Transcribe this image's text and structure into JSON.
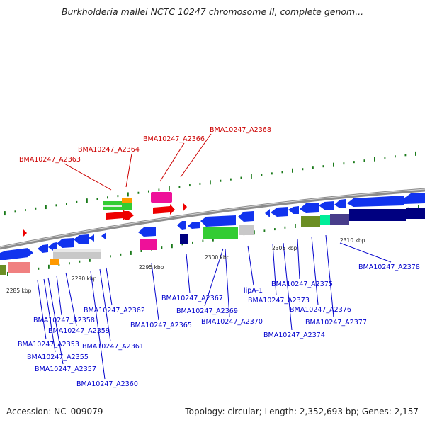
{
  "title": "Burkholderia mallei NCTC 10247 chromosome II, complete genom...",
  "colors": {
    "forward_label": "#cc0000",
    "reverse_label": "#0000cc",
    "ruler_dot": "#1a7a1a",
    "backbone": "#8c8c8c",
    "marker": "#ee0000"
  },
  "scale_ticks": [
    "2285 kbp",
    "2290 kbp",
    "2295 kbp",
    "2300 kbp",
    "2305 kbp",
    "2310 kbp"
  ],
  "gene_labels": [
    {
      "name": "BMA10247_A2368",
      "strand": "forward"
    },
    {
      "name": "BMA10247_A2366",
      "strand": "forward"
    },
    {
      "name": "BMA10247_A2364",
      "strand": "forward"
    },
    {
      "name": "BMA10247_A2363",
      "strand": "forward"
    },
    {
      "name": "BMA10247_A2378",
      "strand": "reverse"
    },
    {
      "name": "lipA-1",
      "strand": "reverse"
    },
    {
      "name": "BMA10247_A2375",
      "strand": "reverse"
    },
    {
      "name": "BMA10247_A2367",
      "strand": "reverse"
    },
    {
      "name": "BMA10247_A2373",
      "strand": "reverse"
    },
    {
      "name": "BMA10247_A2362",
      "strand": "reverse"
    },
    {
      "name": "BMA10247_A2369",
      "strand": "reverse"
    },
    {
      "name": "BMA10247_A2376",
      "strand": "reverse"
    },
    {
      "name": "BMA10247_A2358",
      "strand": "reverse"
    },
    {
      "name": "BMA10247_A2370",
      "strand": "reverse"
    },
    {
      "name": "BMA10247_A2377",
      "strand": "reverse"
    },
    {
      "name": "BMA10247_A2365",
      "strand": "reverse"
    },
    {
      "name": "BMA10247_A2359",
      "strand": "reverse"
    },
    {
      "name": "BMA10247_A2374",
      "strand": "reverse"
    },
    {
      "name": "BMA10247_A2353",
      "strand": "reverse"
    },
    {
      "name": "BMA10247_A2361",
      "strand": "reverse"
    },
    {
      "name": "BMA10247_A2355",
      "strand": "reverse"
    },
    {
      "name": "BMA10247_A2357",
      "strand": "reverse"
    },
    {
      "name": "BMA10247_A2360",
      "strand": "reverse"
    }
  ],
  "footer": {
    "accession": "Accession: NC_009079",
    "summary": "Topology: circular; Length: 2,352,693 bp; Genes: 2,157"
  }
}
